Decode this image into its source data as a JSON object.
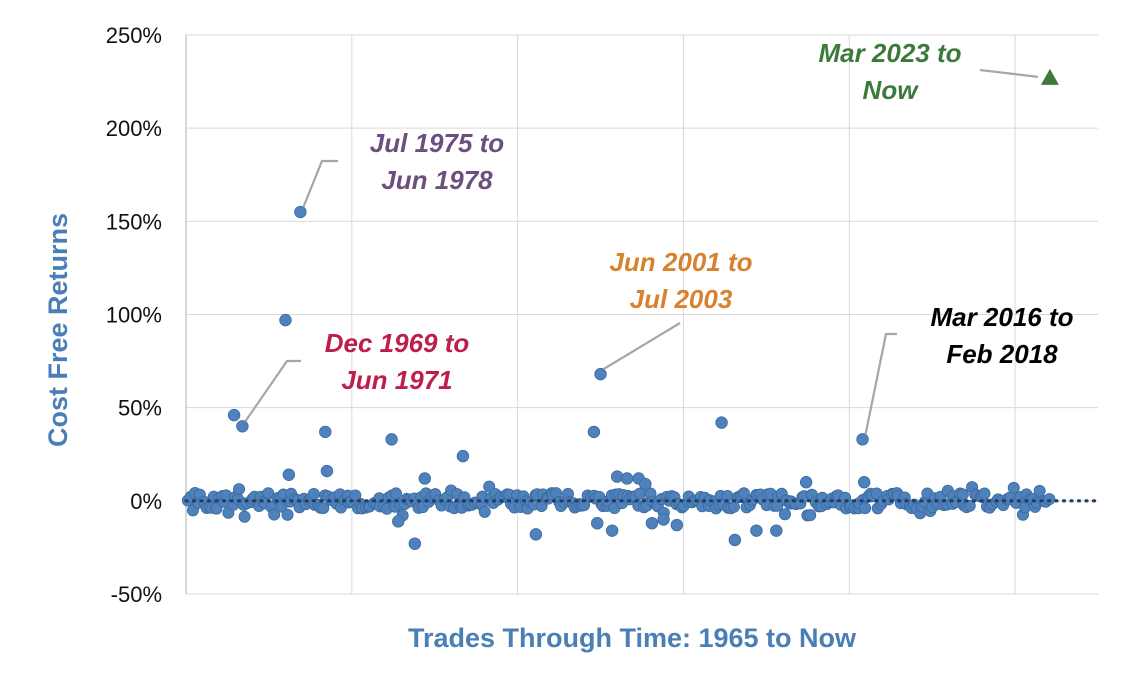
{
  "chart_data": {
    "type": "scatter",
    "xlabel": "Trades Through Time: 1965 to Now",
    "ylabel": "Cost Free Returns",
    "ylim": [
      -50,
      250
    ],
    "yticks": [
      "-50%",
      "0%",
      "50%",
      "100%",
      "150%",
      "200%",
      "250%"
    ],
    "ytick_values": [
      -50,
      0,
      50,
      100,
      150,
      200,
      250
    ],
    "xlim": [
      0,
      550
    ],
    "xgrid_values": [
      0,
      100,
      200,
      300,
      400,
      500
    ],
    "grid": true,
    "baseline_style": "dotted",
    "colors": {
      "points": "#4f81bd",
      "point_stroke": "#3a6a9c",
      "baseline": "#1f3f66",
      "grid": "#d9d9d9",
      "axis": "#bfbfbf",
      "current": "#3c7a3c"
    },
    "highlighted_points": [
      {
        "x": 69,
        "y": 155
      },
      {
        "x": 60,
        "y": 97
      },
      {
        "x": 29,
        "y": 46
      },
      {
        "x": 34,
        "y": 40
      },
      {
        "x": 84,
        "y": 37
      },
      {
        "x": 62,
        "y": 14
      },
      {
        "x": 85,
        "y": 16
      },
      {
        "x": 124,
        "y": 33
      },
      {
        "x": 144,
        "y": 12
      },
      {
        "x": 167,
        "y": 24
      },
      {
        "x": 246,
        "y": 37
      },
      {
        "x": 250,
        "y": 68
      },
      {
        "x": 260,
        "y": 13
      },
      {
        "x": 266,
        "y": 12
      },
      {
        "x": 273,
        "y": 12
      },
      {
        "x": 277,
        "y": 9
      },
      {
        "x": 323,
        "y": 42
      },
      {
        "x": 374,
        "y": 10
      },
      {
        "x": 408,
        "y": 33
      },
      {
        "x": 409,
        "y": 10
      },
      {
        "x": 128,
        "y": -11
      },
      {
        "x": 138,
        "y": -23
      },
      {
        "x": 211,
        "y": -18
      },
      {
        "x": 248,
        "y": -12
      },
      {
        "x": 257,
        "y": -16
      },
      {
        "x": 281,
        "y": -12
      },
      {
        "x": 288,
        "y": -10
      },
      {
        "x": 296,
        "y": -13
      },
      {
        "x": 331,
        "y": -21
      },
      {
        "x": 344,
        "y": -16
      },
      {
        "x": 356,
        "y": -16
      }
    ],
    "cluster": {
      "x_start": 1,
      "x_end": 520,
      "y_min": -9,
      "y_max": 8,
      "count": 330
    },
    "current_trade": {
      "x": 521,
      "y": 227,
      "marker": "triangle"
    },
    "annotations": [
      {
        "text_lines": [
          "Jul 1975 to",
          "Jun 1978"
        ],
        "color": "#6b4f7e",
        "target": {
          "x": 69,
          "y": 155
        }
      },
      {
        "text_lines": [
          "Dec 1969 to",
          "Jun 1971"
        ],
        "color": "#be1e4c",
        "target": {
          "x": 34,
          "y": 40
        }
      },
      {
        "text_lines": [
          "Jun 2001 to",
          "Jul 2003"
        ],
        "color": "#d8812e",
        "target": {
          "x": 250,
          "y": 68
        }
      },
      {
        "text_lines": [
          "Mar 2016 to",
          "Feb 2018"
        ],
        "color": "#000000",
        "target": {
          "x": 408,
          "y": 33
        }
      },
      {
        "text_lines": [
          "Mar 2023 to",
          "Now"
        ],
        "color": "#3c7a3c",
        "target": {
          "x": 521,
          "y": 227
        }
      }
    ]
  }
}
